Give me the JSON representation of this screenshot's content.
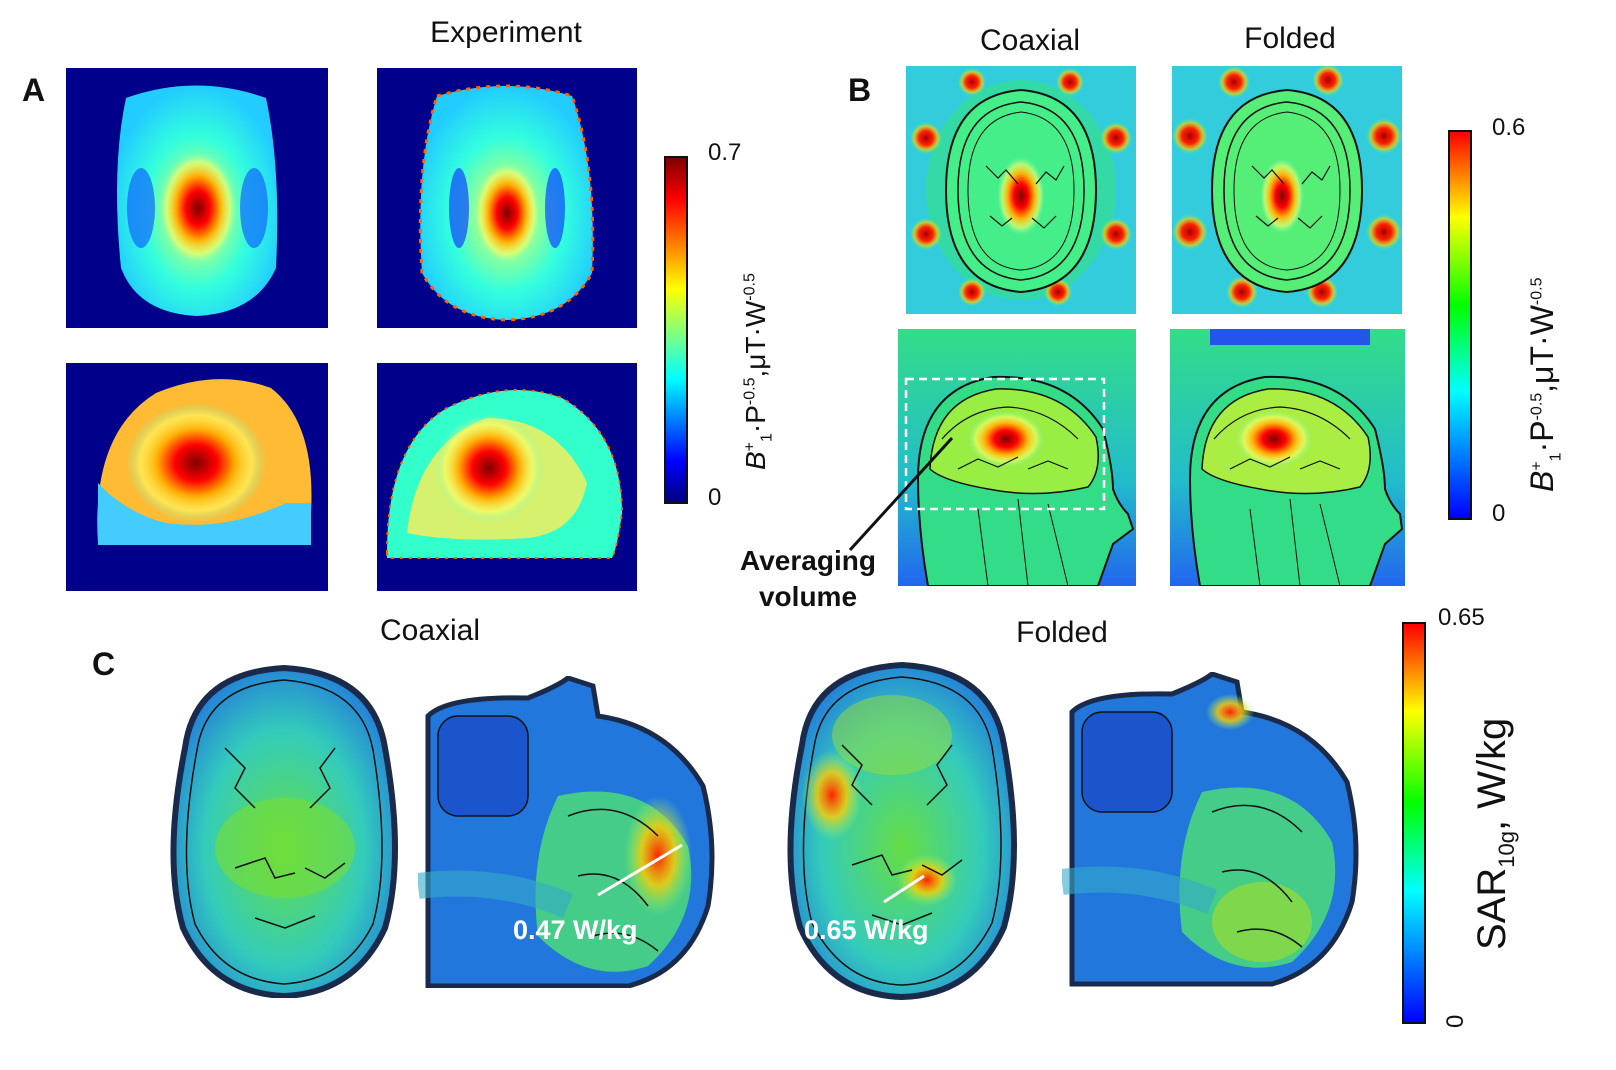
{
  "panel_a": {
    "letter": "A",
    "column_title": "Experiment",
    "colorbar": {
      "max": "0.7",
      "min": "0",
      "label_B": "B",
      "label_sup1": "+",
      "label_sub1": "1",
      "label_mid": "·P",
      "label_sup2": "-0.5",
      "label_mid2": ",μT·W",
      "label_sup3": "-0.5"
    }
  },
  "panel_b": {
    "letter": "B",
    "col1_title": "Coaxial",
    "col2_title": "Folded",
    "annotation_line1": "Averaging",
    "annotation_line2": "volume",
    "colorbar": {
      "max": "0.6",
      "min": "0",
      "label_B": "B",
      "label_sup1": "+",
      "label_sub1": "1",
      "label_mid": "·P",
      "label_sup2": "-0.5",
      "label_mid2": ",μT·W",
      "label_sup3": "-0.5"
    }
  },
  "panel_c": {
    "letter": "C",
    "col1_title": "Coaxial",
    "col2_title": "Folded",
    "coaxial_peak": "0.47 W/kg",
    "folded_peak": "0.65 W/kg",
    "colorbar": {
      "max": "0.65",
      "min": "0",
      "label_main": "SAR",
      "label_sub": "10g",
      "label_unit": ", W/kg"
    }
  },
  "colors": {
    "background_dark": "#00008b",
    "jet_low": "#0000ff",
    "jet_mid": "#00ffff",
    "jet_high": "#ff0000",
    "jet_max": "#800000"
  }
}
